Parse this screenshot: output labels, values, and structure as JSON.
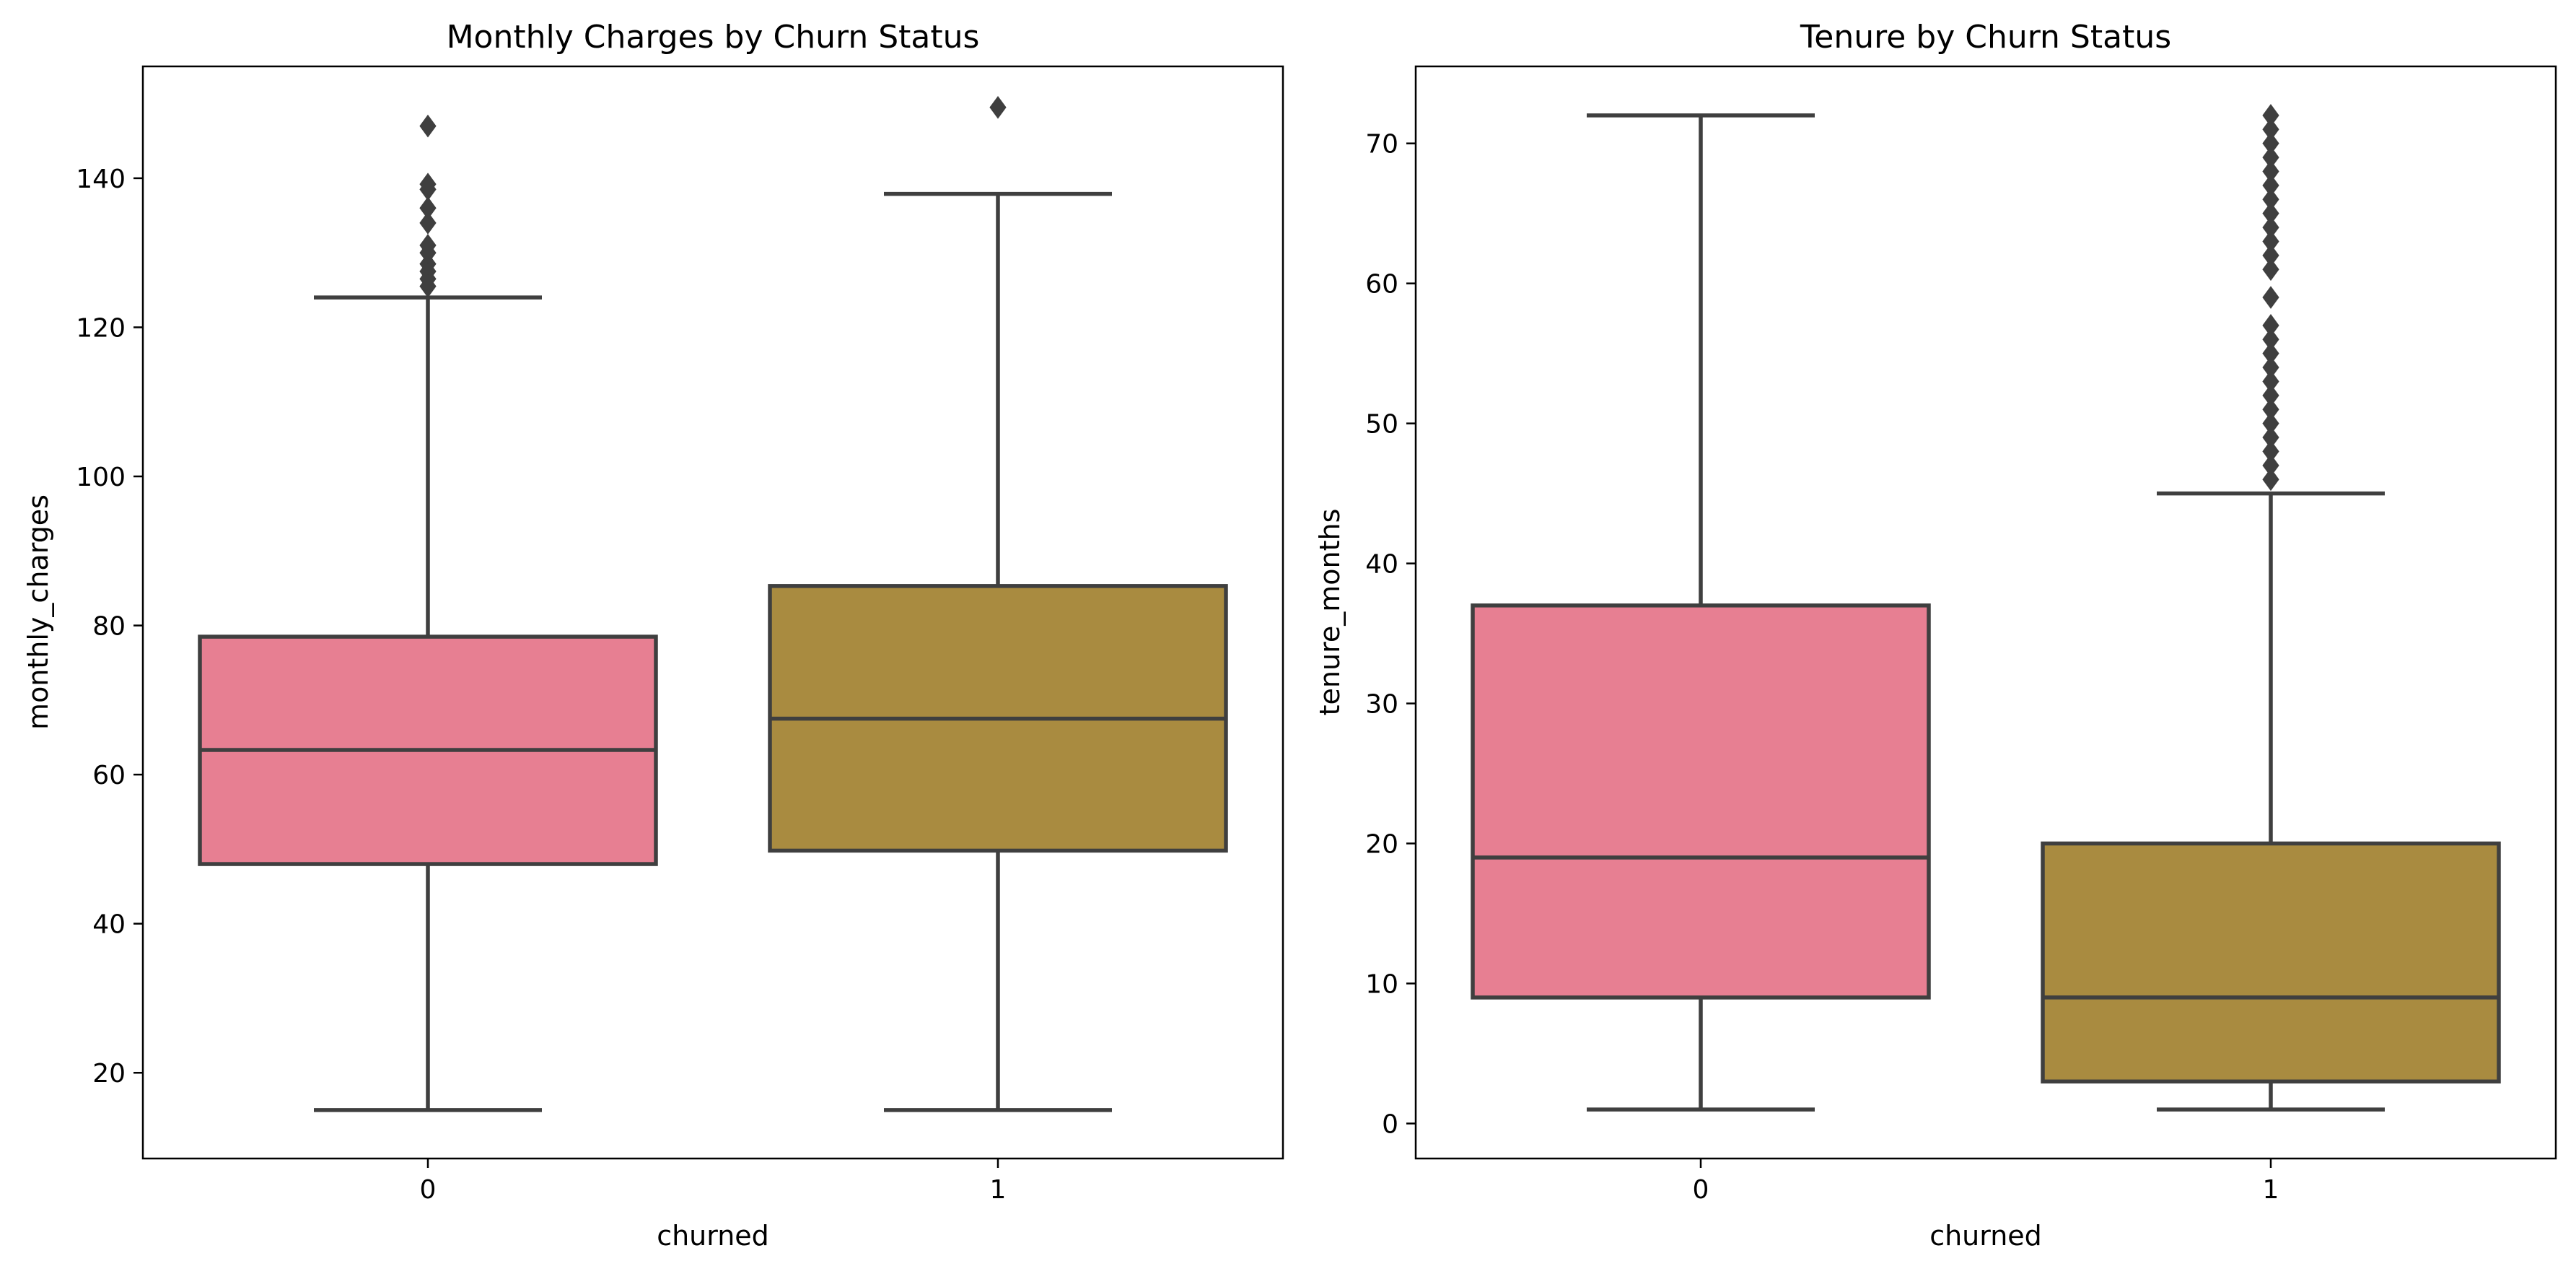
{
  "figure": {
    "background": "#ffffff",
    "line_color": "#3f3f3f",
    "palette": [
      "#e77f92",
      "#a98b40"
    ]
  },
  "chart_data": [
    {
      "type": "box",
      "title": "Monthly Charges by Churn Status",
      "xlabel": "churned",
      "ylabel": "monthly_charges",
      "categories": [
        "0",
        "1"
      ],
      "ylim": [
        8.5,
        155
      ],
      "yticks": [
        20,
        40,
        60,
        80,
        100,
        120,
        140
      ],
      "grid": false,
      "legend": "none",
      "boxes": [
        {
          "category": "0",
          "color": "#e77f92",
          "whisker_low": 15,
          "q1": 48,
          "median": 63.3,
          "q3": 78.5,
          "whisker_high": 124,
          "outliers": [
            125.5,
            126.5,
            127.5,
            128.5,
            130,
            131,
            134,
            136,
            138.5,
            139.2,
            147
          ]
        },
        {
          "category": "1",
          "color": "#a98b40",
          "whisker_low": 15,
          "q1": 49.8,
          "median": 67.5,
          "q3": 85.3,
          "whisker_high": 137.9,
          "outliers": [
            149.5
          ]
        }
      ]
    },
    {
      "type": "box",
      "title": "Tenure by Churn Status",
      "xlabel": "churned",
      "ylabel": "tenure_months",
      "categories": [
        "0",
        "1"
      ],
      "ylim": [
        -2.5,
        75.5
      ],
      "yticks": [
        0,
        10,
        20,
        30,
        40,
        50,
        60,
        70
      ],
      "grid": false,
      "legend": "none",
      "boxes": [
        {
          "category": "0",
          "color": "#e77f92",
          "whisker_low": 1,
          "q1": 9,
          "median": 19,
          "q3": 37,
          "whisker_high": 72,
          "outliers": []
        },
        {
          "category": "1",
          "color": "#a98b40",
          "whisker_low": 1,
          "q1": 3,
          "median": 9,
          "q3": 20,
          "whisker_high": 45,
          "outliers": [
            46,
            47,
            48,
            49,
            50,
            51,
            52,
            53,
            54,
            55,
            56,
            57,
            59,
            61,
            62,
            63,
            64,
            65,
            66,
            67,
            68,
            69,
            70,
            71,
            72
          ]
        }
      ]
    }
  ]
}
